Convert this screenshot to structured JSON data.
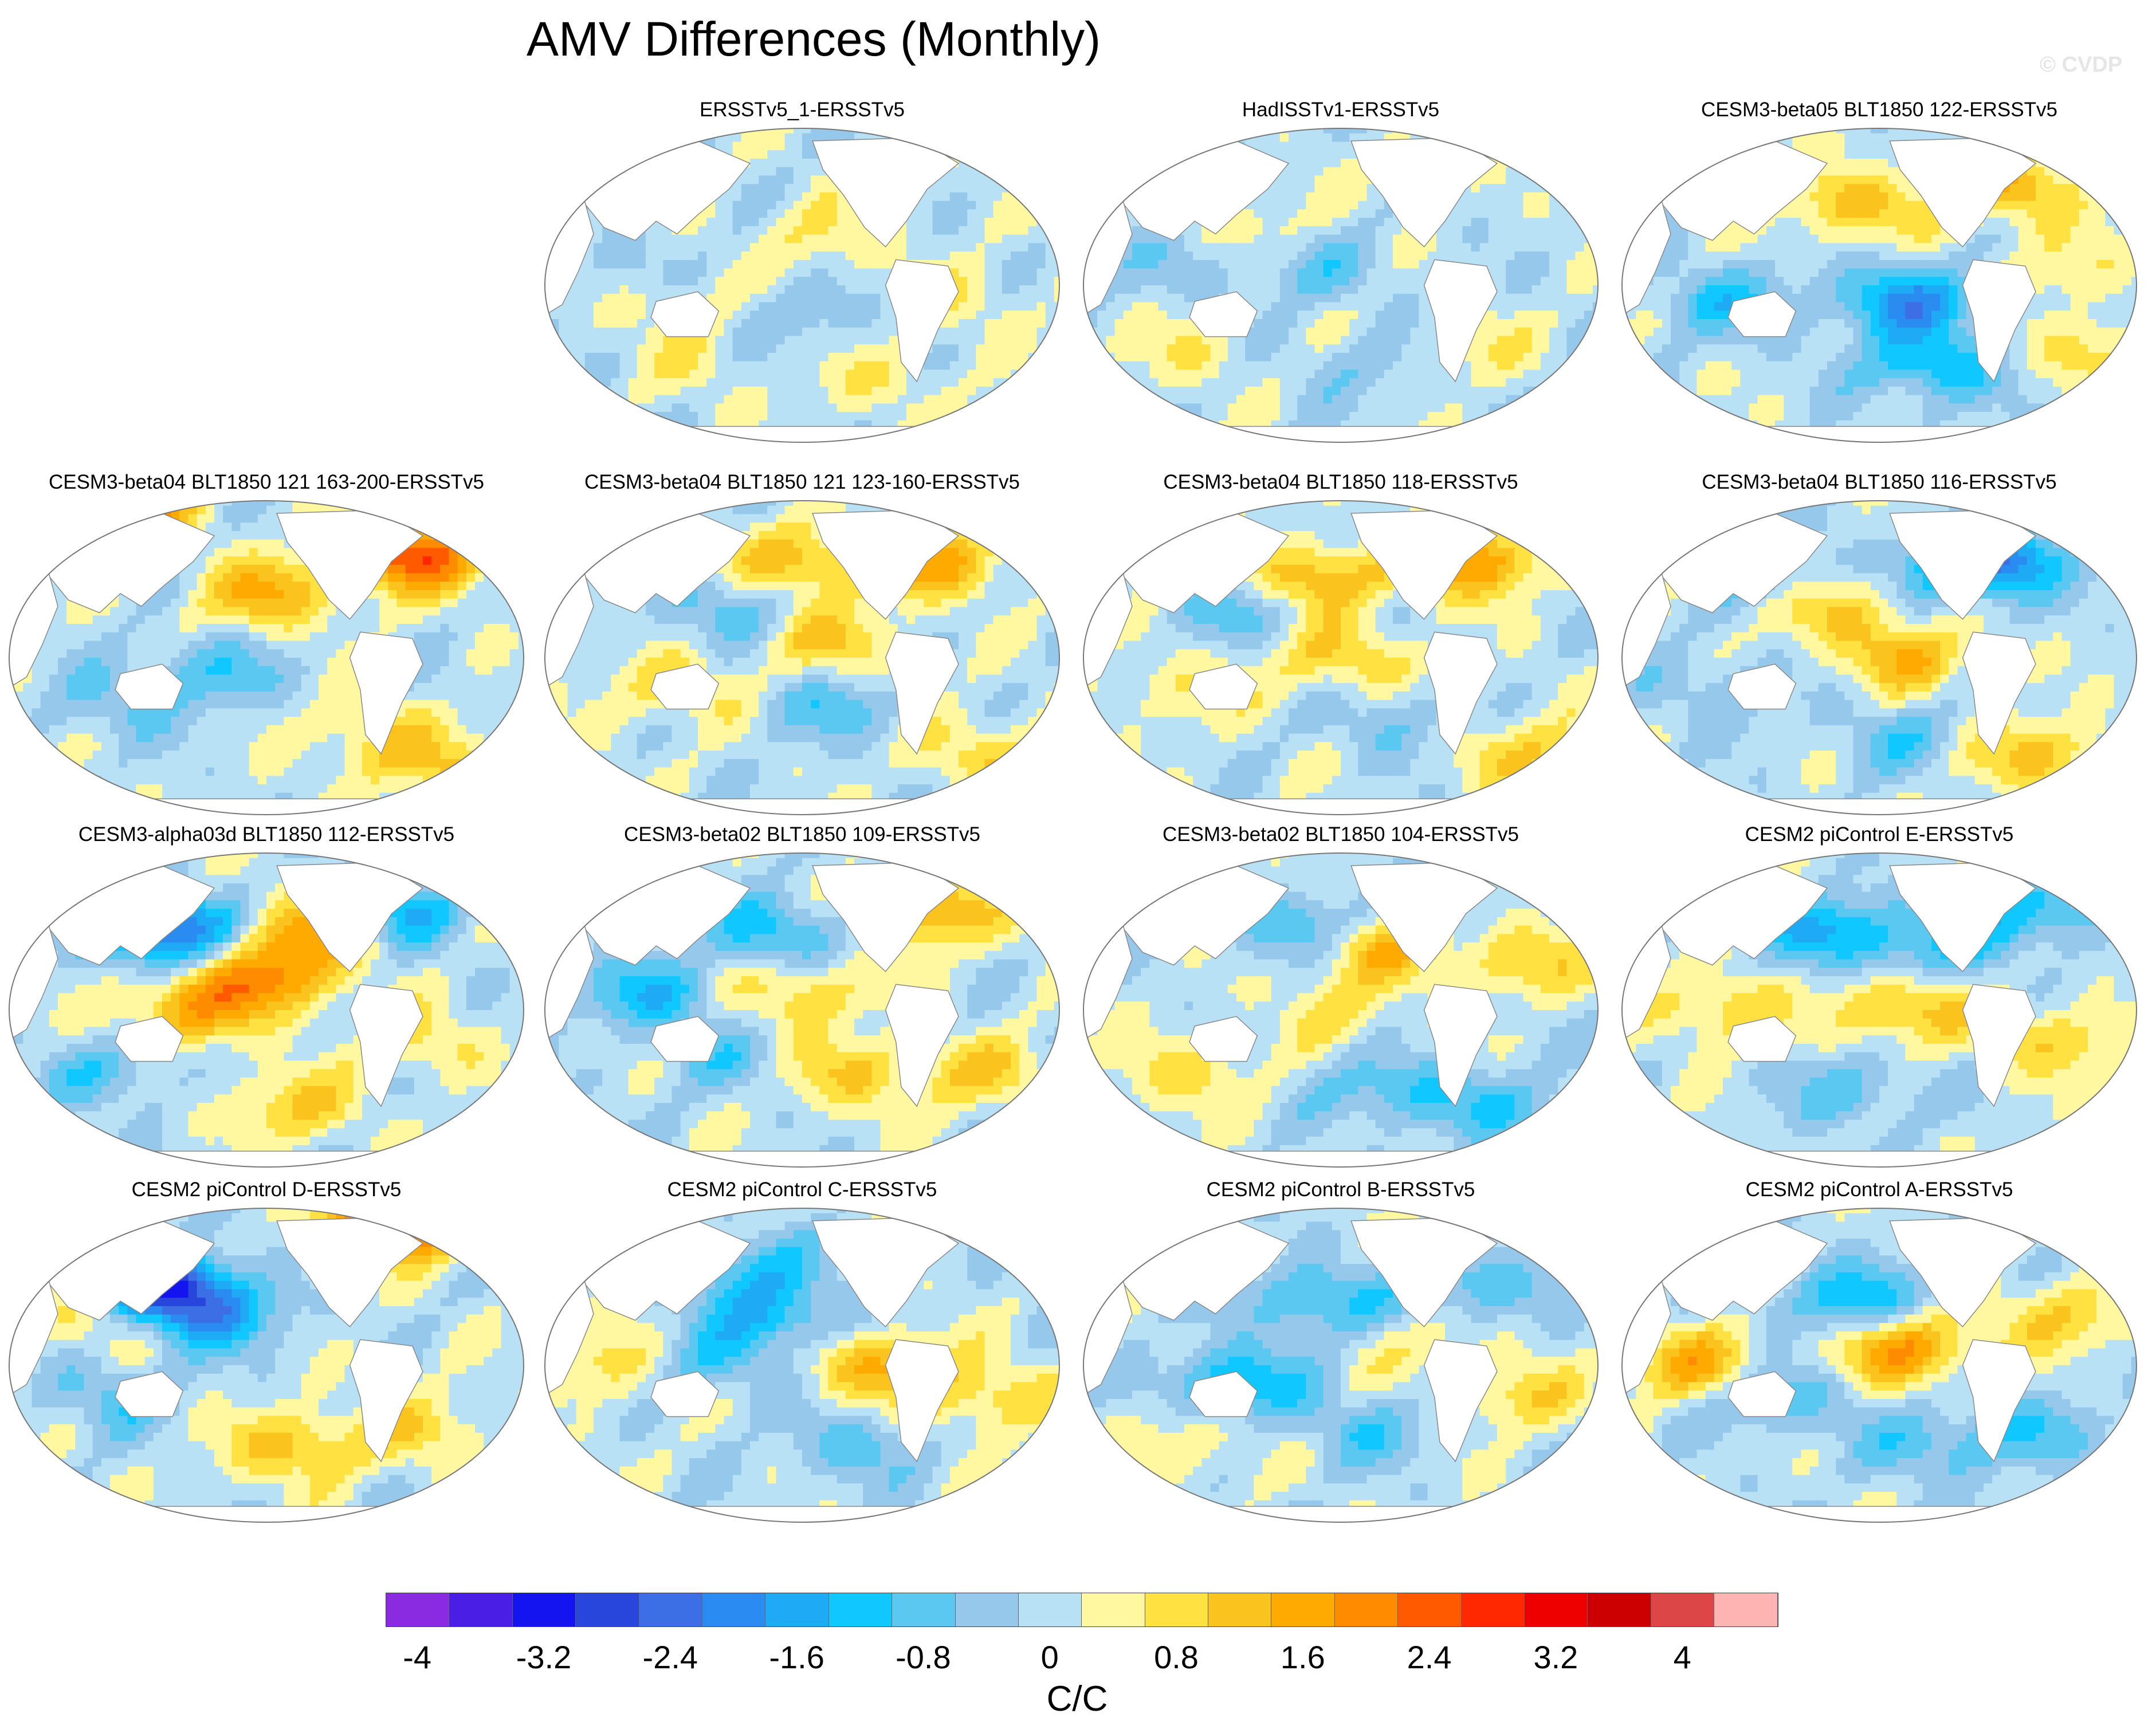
{
  "figure": {
    "title": "AMV Differences (Monthly)",
    "copyright": "© CVDP"
  },
  "colors": {
    "levels": [
      "#8a2be2",
      "#4b1ee6",
      "#1414f0",
      "#2846dc",
      "#3c6ee6",
      "#2a8cf0",
      "#1eaaf5",
      "#10c8ff",
      "#5ac8f0",
      "#96c8ec",
      "#b9e1f5",
      "#fff8a0",
      "#ffe141",
      "#fac31e",
      "#ffaa00",
      "#ff8c00",
      "#ff5a00",
      "#ff2800",
      "#ee0000",
      "#cc0000",
      "#dc4646",
      "#ffb4b4"
    ]
  },
  "chart_data": {
    "type": "heatmap",
    "projection": "Robinson-like global ocean map",
    "units": "C/C",
    "colorbar": {
      "levels_min": -4.2,
      "levels_max": 4.2,
      "interval": 0.4,
      "tick_labels": [
        "-4",
        "-3.2",
        "-2.4",
        "-1.6",
        "-0.8",
        "0",
        "0.8",
        "1.6",
        "2.4",
        "3.2",
        "4"
      ],
      "tick_values": [
        -4,
        -3.2,
        -2.4,
        -1.6,
        -0.8,
        0,
        0.8,
        1.6,
        2.4,
        3.2,
        4
      ]
    },
    "panels": [
      {
        "title": "ERSSTv5_1-ERSSTv5",
        "row": 0,
        "col": 1,
        "dominant": "mixed weak",
        "features": [
          [
            0.25,
            0.55,
            0.5
          ],
          [
            0.55,
            0.35,
            0.6
          ],
          [
            0.5,
            0.6,
            -0.5
          ],
          [
            0.8,
            0.55,
            0.5
          ],
          [
            0.3,
            0.75,
            0.4
          ],
          [
            0.65,
            0.8,
            0.5
          ],
          [
            0.15,
            0.45,
            -0.4
          ]
        ]
      },
      {
        "title": "HadISSTv1-ERSSTv5",
        "row": 0,
        "col": 2,
        "dominant": "weak negative",
        "features": [
          [
            0.45,
            0.45,
            -0.6
          ],
          [
            0.35,
            0.3,
            0.4
          ],
          [
            0.75,
            0.7,
            0.5
          ],
          [
            0.2,
            0.7,
            0.5
          ],
          [
            0.55,
            0.75,
            -0.5
          ],
          [
            0.15,
            0.45,
            -0.4
          ]
        ]
      },
      {
        "title": "CESM3-beta05 BLT1850 122-ERSSTv5",
        "row": 0,
        "col": 3,
        "dominant": "negative",
        "features": [
          [
            0.55,
            0.55,
            -1.8
          ],
          [
            0.45,
            0.25,
            1.2
          ],
          [
            0.75,
            0.2,
            1.4
          ],
          [
            0.6,
            0.75,
            -1.4
          ],
          [
            0.2,
            0.55,
            -1.0
          ],
          [
            0.85,
            0.45,
            0.6
          ],
          [
            0.9,
            0.7,
            0.8
          ]
        ]
      },
      {
        "title": "CESM3-beta04 BLT1850 121 163-200-ERSSTv5",
        "row": 1,
        "col": 0,
        "dominant": "mixed",
        "features": [
          [
            0.5,
            0.3,
            1.4
          ],
          [
            0.78,
            0.18,
            2.6
          ],
          [
            0.2,
            0.03,
            3.0
          ],
          [
            0.4,
            0.55,
            -0.9
          ],
          [
            0.7,
            0.75,
            0.8
          ],
          [
            0.2,
            0.65,
            -0.6
          ],
          [
            0.85,
            0.85,
            0.9
          ]
        ]
      },
      {
        "title": "CESM3-beta04 BLT1850 121 123-160-ERSSTv5",
        "row": 1,
        "col": 1,
        "dominant": "mixed",
        "features": [
          [
            0.5,
            0.2,
            1.3
          ],
          [
            0.55,
            0.45,
            1.0
          ],
          [
            0.75,
            0.2,
            1.6
          ],
          [
            0.25,
            0.6,
            0.8
          ],
          [
            0.55,
            0.65,
            -0.8
          ],
          [
            0.85,
            0.8,
            0.9
          ],
          [
            0.35,
            0.35,
            -0.8
          ]
        ]
      },
      {
        "title": "CESM3-beta04 BLT1850 118-ERSSTv5",
        "row": 1,
        "col": 2,
        "dominant": "mixed",
        "features": [
          [
            0.45,
            0.25,
            1.4
          ],
          [
            0.75,
            0.2,
            1.8
          ],
          [
            0.5,
            0.5,
            1.0
          ],
          [
            0.3,
            0.35,
            -0.8
          ],
          [
            0.6,
            0.7,
            -0.6
          ],
          [
            0.85,
            0.8,
            0.9
          ],
          [
            0.2,
            0.6,
            0.6
          ]
        ]
      },
      {
        "title": "CESM3-beta04 BLT1850 116-ERSSTv5",
        "row": 1,
        "col": 3,
        "dominant": "mixed",
        "features": [
          [
            0.55,
            0.5,
            1.2
          ],
          [
            0.7,
            0.2,
            -2.8
          ],
          [
            0.4,
            0.35,
            1.0
          ],
          [
            0.2,
            0.6,
            -0.6
          ],
          [
            0.8,
            0.8,
            1.2
          ],
          [
            0.55,
            0.75,
            -0.7
          ],
          [
            0.3,
            0.25,
            -0.8
          ]
        ]
      },
      {
        "title": "CESM3-alpha03d BLT1850 112-ERSSTv5",
        "row": 2,
        "col": 0,
        "dominant": "positive",
        "features": [
          [
            0.5,
            0.4,
            1.8
          ],
          [
            0.6,
            0.25,
            1.6
          ],
          [
            0.35,
            0.5,
            1.5
          ],
          [
            0.3,
            0.25,
            -2.6
          ],
          [
            0.75,
            0.2,
            -1.4
          ],
          [
            0.2,
            0.7,
            -0.8
          ],
          [
            0.55,
            0.8,
            1.0
          ],
          [
            0.8,
            0.6,
            0.7
          ]
        ]
      },
      {
        "title": "CESM3-beta02 BLT1850 109-ERSSTv5",
        "row": 2,
        "col": 1,
        "dominant": "mixed",
        "features": [
          [
            0.45,
            0.25,
            -1.2
          ],
          [
            0.5,
            0.45,
            1.0
          ],
          [
            0.75,
            0.2,
            1.4
          ],
          [
            0.2,
            0.45,
            -1.2
          ],
          [
            0.6,
            0.7,
            1.0
          ],
          [
            0.35,
            0.65,
            -0.6
          ],
          [
            0.85,
            0.7,
            0.9
          ]
        ]
      },
      {
        "title": "CESM3-beta02 BLT1850 104-ERSSTv5",
        "row": 2,
        "col": 2,
        "dominant": "negative",
        "features": [
          [
            0.45,
            0.25,
            -1.4
          ],
          [
            0.55,
            0.3,
            1.6
          ],
          [
            0.5,
            0.5,
            0.6
          ],
          [
            0.6,
            0.75,
            -1.0
          ],
          [
            0.85,
            0.35,
            1.0
          ],
          [
            0.2,
            0.7,
            0.8
          ],
          [
            0.8,
            0.8,
            -0.8
          ]
        ]
      },
      {
        "title": "CESM2 piControl E-ERSSTv5",
        "row": 2,
        "col": 3,
        "dominant": "mixed",
        "features": [
          [
            0.55,
            0.5,
            1.3
          ],
          [
            0.4,
            0.25,
            -1.4
          ],
          [
            0.6,
            0.3,
            -1.0
          ],
          [
            0.2,
            0.5,
            1.0
          ],
          [
            0.85,
            0.6,
            1.0
          ],
          [
            0.45,
            0.75,
            -0.8
          ],
          [
            0.8,
            0.2,
            -1.2
          ]
        ]
      },
      {
        "title": "CESM2 piControl D-ERSSTv5",
        "row": 3,
        "col": 0,
        "dominant": "negative",
        "features": [
          [
            0.4,
            0.35,
            -1.4
          ],
          [
            0.3,
            0.25,
            -3.0
          ],
          [
            0.75,
            0.05,
            3.0
          ],
          [
            0.55,
            0.75,
            1.2
          ],
          [
            0.2,
            0.6,
            -0.8
          ],
          [
            0.8,
            0.7,
            0.8
          ],
          [
            0.15,
            0.35,
            0.8
          ]
        ]
      },
      {
        "title": "CESM2 piControl C-ERSSTv5",
        "row": 3,
        "col": 1,
        "dominant": "negative",
        "features": [
          [
            0.45,
            0.35,
            -1.3
          ],
          [
            0.65,
            0.5,
            1.4
          ],
          [
            0.3,
            0.5,
            -1.0
          ],
          [
            0.15,
            0.5,
            1.0
          ],
          [
            0.6,
            0.75,
            -0.8
          ],
          [
            0.85,
            0.6,
            1.0
          ],
          [
            0.4,
            0.2,
            -1.0
          ]
        ]
      },
      {
        "title": "CESM2 piControl B-ERSSTv5",
        "row": 3,
        "col": 2,
        "dominant": "negative",
        "features": [
          [
            0.45,
            0.3,
            -1.2
          ],
          [
            0.3,
            0.55,
            -1.4
          ],
          [
            0.75,
            0.25,
            -1.0
          ],
          [
            0.55,
            0.7,
            -0.8
          ],
          [
            0.85,
            0.6,
            0.8
          ],
          [
            0.2,
            0.75,
            0.6
          ],
          [
            0.65,
            0.45,
            0.5
          ]
        ]
      },
      {
        "title": "CESM2 piControl A-ERSSTv5",
        "row": 3,
        "col": 3,
        "dominant": "mixed",
        "features": [
          [
            0.55,
            0.45,
            1.8
          ],
          [
            0.45,
            0.3,
            -1.4
          ],
          [
            0.15,
            0.5,
            1.4
          ],
          [
            0.3,
            0.6,
            -1.0
          ],
          [
            0.8,
            0.7,
            -0.8
          ],
          [
            0.6,
            0.75,
            -0.9
          ],
          [
            0.85,
            0.35,
            1.0
          ]
        ]
      }
    ]
  }
}
